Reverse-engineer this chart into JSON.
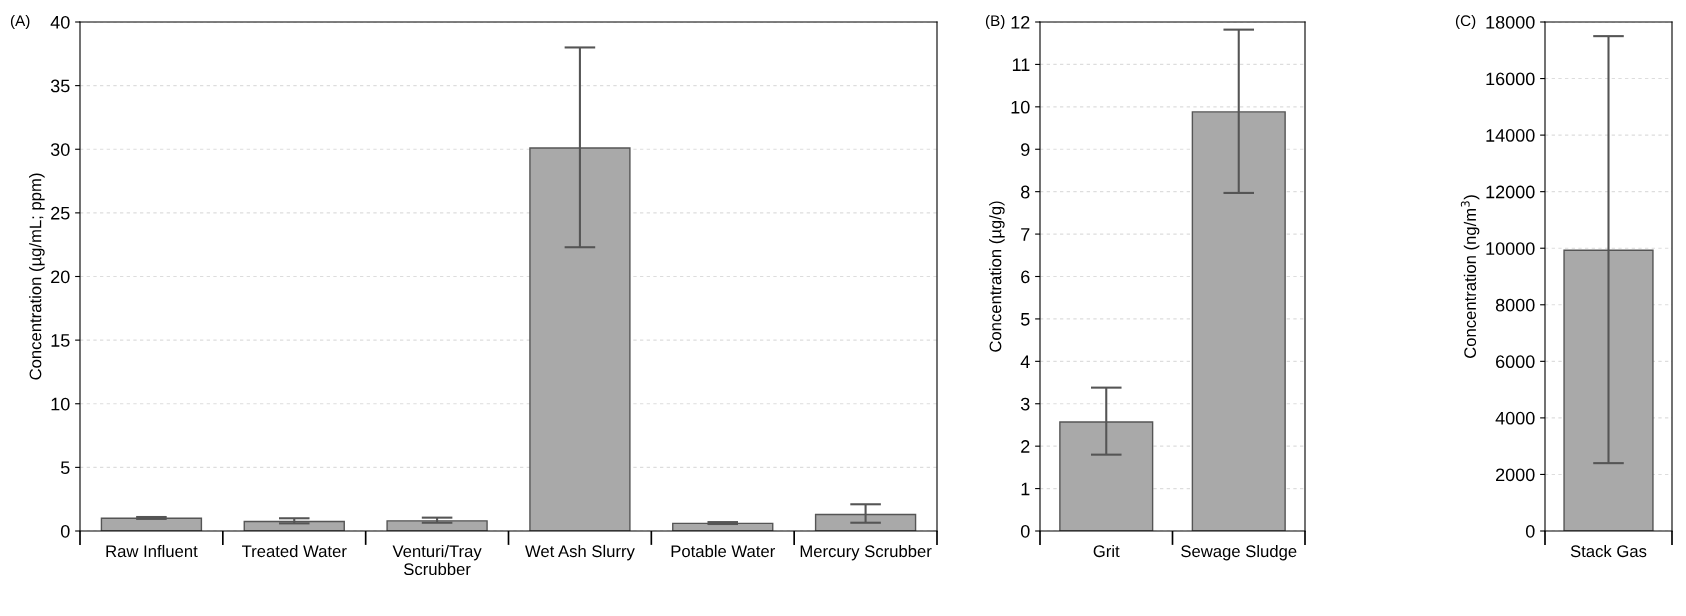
{
  "chart_data": [
    {
      "type": "bar",
      "annotations": [
        "(A)"
      ],
      "ylabel": "Concentration (µg/mL; ppm)",
      "categories": [
        "Raw Influent",
        "Treated Water",
        "Venturi/Tray\nScrubber",
        "Wet Ash Slurry",
        "Potable Water",
        "Mercury Scrubber"
      ],
      "values": [
        1.0,
        0.75,
        0.8,
        30.1,
        0.6,
        1.3
      ],
      "errors": [
        [
          0.95,
          1.1
        ],
        [
          0.6,
          1.0
        ],
        [
          0.65,
          1.05
        ],
        [
          22.3,
          38.0
        ],
        [
          0.55,
          0.7
        ],
        [
          0.65,
          2.1
        ]
      ],
      "color": "#a9a9a9",
      "ylim": [
        0,
        40
      ],
      "yticks": [
        0,
        5,
        10,
        15,
        20,
        25,
        30,
        35,
        40
      ],
      "grid": "y"
    },
    {
      "type": "bar",
      "annotations": [
        "(B)"
      ],
      "ylabel": "Concentration (µg/g)",
      "categories": [
        "Grit",
        "Sewage Sludge"
      ],
      "values": [
        2.57,
        9.88
      ],
      "errors": [
        [
          1.8,
          3.38
        ],
        [
          7.97,
          11.82
        ]
      ],
      "color": "#a9a9a9",
      "ylim": [
        0,
        12
      ],
      "yticks": [
        0,
        1,
        2,
        3,
        4,
        5,
        6,
        7,
        8,
        9,
        10,
        11,
        12
      ],
      "grid": "y"
    },
    {
      "type": "bar",
      "annotations": [
        "(C)"
      ],
      "ylabel": "Concentration (ng/m$^{3}$)",
      "categories": [
        "Stack Gas"
      ],
      "values": [
        9930
      ],
      "errors": [
        [
          2400,
          17500
        ]
      ],
      "color": "#a9a9a9",
      "ylim": [
        0,
        18000
      ],
      "yticks": [
        0,
        2000,
        4000,
        6000,
        8000,
        10000,
        12000,
        14000,
        16000,
        18000
      ],
      "grid": "y"
    }
  ]
}
